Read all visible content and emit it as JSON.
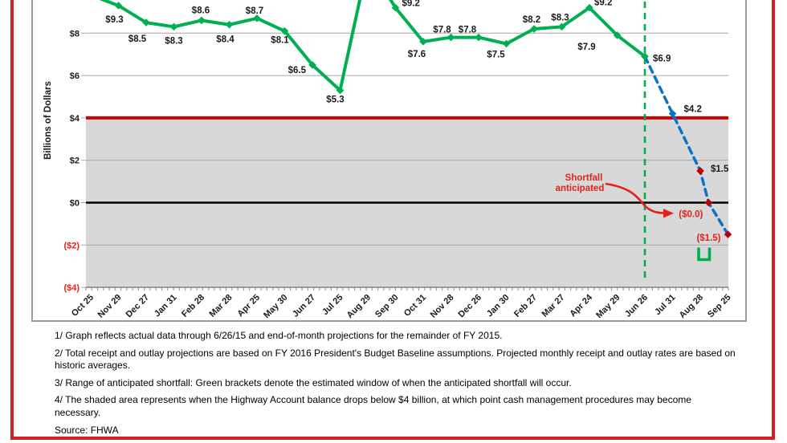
{
  "figure": {
    "border_color": "#cf2027",
    "frame_color": "#9b9b9b",
    "background": "#ffffff"
  },
  "chart_data": {
    "type": "line",
    "title": "",
    "xlabel": "",
    "ylabel": "Billions of Dollars",
    "ylim": [
      -4,
      10
    ],
    "grid": true,
    "legend": "none",
    "categories": [
      "Oct 25",
      "Nov 29",
      "Dec 27",
      "Jan 31",
      "Feb 28",
      "Mar 28",
      "Apr 25",
      "May 30",
      "Jun 27",
      "Jul 25",
      "Aug 29",
      "Sep 30",
      "Oct 31",
      "Nov 28",
      "Dec 26",
      "Jan 30",
      "Feb 27",
      "Mar 27",
      "Apr 24",
      "May 29",
      "Jun 26",
      "Jul 31",
      "Aug 28",
      "Sep 25"
    ],
    "y_ticks": [
      {
        "label": "$8",
        "value": 8,
        "color": "#1a1a1a"
      },
      {
        "label": "$6",
        "value": 6,
        "color": "#1a1a1a"
      },
      {
        "label": "$4",
        "value": 4,
        "color": "#1a1a1a"
      },
      {
        "label": "$2",
        "value": 2,
        "color": "#1a1a1a"
      },
      {
        "label": "$0",
        "value": 0,
        "color": "#1a1a1a"
      },
      {
        "label": "($2)",
        "value": -2,
        "color": "#e3211a"
      },
      {
        "label": "($4)",
        "value": -4,
        "color": "#e3211a"
      }
    ],
    "series": [
      {
        "name": "actual",
        "color": "#00b050",
        "dash": null,
        "width": 4,
        "points": [
          {
            "x": 0,
            "y": 9.8,
            "label": "",
            "offscreen": true
          },
          {
            "x": 1,
            "y": 9.3,
            "label": "$9.3",
            "anchor": "middle",
            "dx": -5,
            "dy": 21
          },
          {
            "x": 2,
            "y": 8.5,
            "label": "$8.5",
            "anchor": "middle",
            "dx": -11,
            "dy": 24
          },
          {
            "x": 3,
            "y": 8.3,
            "label": "$8.3",
            "anchor": "middle",
            "dx": 0,
            "dy": 21
          },
          {
            "x": 4,
            "y": 8.6,
            "label": "$8.6",
            "anchor": "middle",
            "dx": -1,
            "dy": -9
          },
          {
            "x": 5,
            "y": 8.4,
            "label": "$8.4",
            "anchor": "middle",
            "dx": -5,
            "dy": 22
          },
          {
            "x": 6,
            "y": 8.7,
            "label": "$8.7",
            "anchor": "middle",
            "dx": -3,
            "dy": -6
          },
          {
            "x": 7,
            "y": 8.1,
            "label": "$8.1",
            "anchor": "middle",
            "dx": -6,
            "dy": 15
          },
          {
            "x": 8,
            "y": 6.5,
            "label": "$6.5",
            "anchor": "end",
            "dx": -8,
            "dy": 10
          },
          {
            "x": 9,
            "y": 5.3,
            "label": "$5.3",
            "anchor": "middle",
            "dx": -6,
            "dy": 15
          },
          {
            "x": 10,
            "y": 11.3,
            "label": "",
            "offscreen": true
          },
          {
            "x": 11,
            "y": 9.2,
            "label": "$9.2",
            "anchor": "start",
            "dx": 8,
            "dy": -2
          },
          {
            "x": 12,
            "y": 7.6,
            "label": "$7.6",
            "anchor": "middle",
            "dx": -8,
            "dy": 19
          },
          {
            "x": 13,
            "y": 7.8,
            "label": "$7.8",
            "anchor": "middle",
            "dx": -11,
            "dy": -6
          },
          {
            "x": 14,
            "y": 7.8,
            "label": "$7.8",
            "anchor": "middle",
            "dx": -14,
            "dy": -6
          },
          {
            "x": 15,
            "y": 7.5,
            "label": "$7.5",
            "anchor": "middle",
            "dx": -13,
            "dy": 17
          },
          {
            "x": 16,
            "y": 8.2,
            "label": "$8.2",
            "anchor": "middle",
            "dx": -3,
            "dy": -8
          },
          {
            "x": 17,
            "y": 8.3,
            "label": "$8.3",
            "anchor": "middle",
            "dx": -2,
            "dy": -8
          },
          {
            "x": 18,
            "y": 9.2,
            "label": "$9.2",
            "anchor": "start",
            "dx": 6,
            "dy": -3
          },
          {
            "x": 19,
            "y": 7.9,
            "label": "$7.9",
            "anchor": "middle",
            "dx": -38,
            "dy": 18
          },
          {
            "x": 20,
            "y": 6.9,
            "label": "$6.9",
            "anchor": "start",
            "dx": 10,
            "dy": 6
          }
        ]
      },
      {
        "name": "projected",
        "color": "#0b72c6",
        "dash": "8,6",
        "width": 3.5,
        "points": [
          {
            "x": 20,
            "y": 6.9,
            "label": "",
            "marker": "none"
          },
          {
            "x": 21,
            "y": 4.2,
            "label": "$4.2",
            "anchor": "start",
            "dx": 14,
            "dy": -2,
            "marker_color": "#0b72c6"
          },
          {
            "x": 22,
            "y": 1.5,
            "label": "$1.5",
            "anchor": "start",
            "dx": 13,
            "dy": 1,
            "marker_color": "#c00000"
          },
          {
            "x": 22.3,
            "y": 0.0,
            "label": "($0.0)",
            "anchor": "end",
            "dx": -7,
            "dy": 18,
            "marker_color": "#c00000",
            "label_color": "#e3211a"
          },
          {
            "x": 23,
            "y": -1.5,
            "label": "($1.5)",
            "anchor": "end",
            "dx": -9,
            "dy": 8,
            "marker_color": "#c00000",
            "label_color": "#e3211a"
          }
        ]
      }
    ],
    "reference": {
      "threshold_line": {
        "value": 4,
        "color": "#cc0000"
      },
      "zero_line": {
        "value": 0,
        "color": "#000000"
      },
      "shaded_area": {
        "from": 4,
        "to": -4,
        "color": "#d8d8d8"
      },
      "actuals_cutoff_line": {
        "at_category": "Jun 26",
        "x_index": 20,
        "color": "#00b050",
        "style": "dashed"
      }
    },
    "annotations": {
      "shortfall_label_line1": "Shortfall",
      "shortfall_label_line2": "anticipated",
      "shortfall_color": "#e3211a",
      "window_bracket_color": "#00b050"
    }
  },
  "footnotes": [
    {
      "text": "1/ Graph reflects actual data through 6/26/15 and end-of-month projections for the remainder of FY 2015."
    },
    {
      "text": "2/ Total receipt and outlay projections are based on FY 2016 President's Budget Baseline assumptions.  Projected monthly receipt and outlay rates are based on historic averages."
    },
    {
      "text": "3/ Range of anticipated shortfall: Green brackets denote the estimated window of when the anticipated shortfall will occur."
    },
    {
      "text": "4/ The shaded area represents when the Highway Account balance drops below $4 billion, at which point cash management procedures may become necessary."
    }
  ],
  "source": "Source: FHWA"
}
